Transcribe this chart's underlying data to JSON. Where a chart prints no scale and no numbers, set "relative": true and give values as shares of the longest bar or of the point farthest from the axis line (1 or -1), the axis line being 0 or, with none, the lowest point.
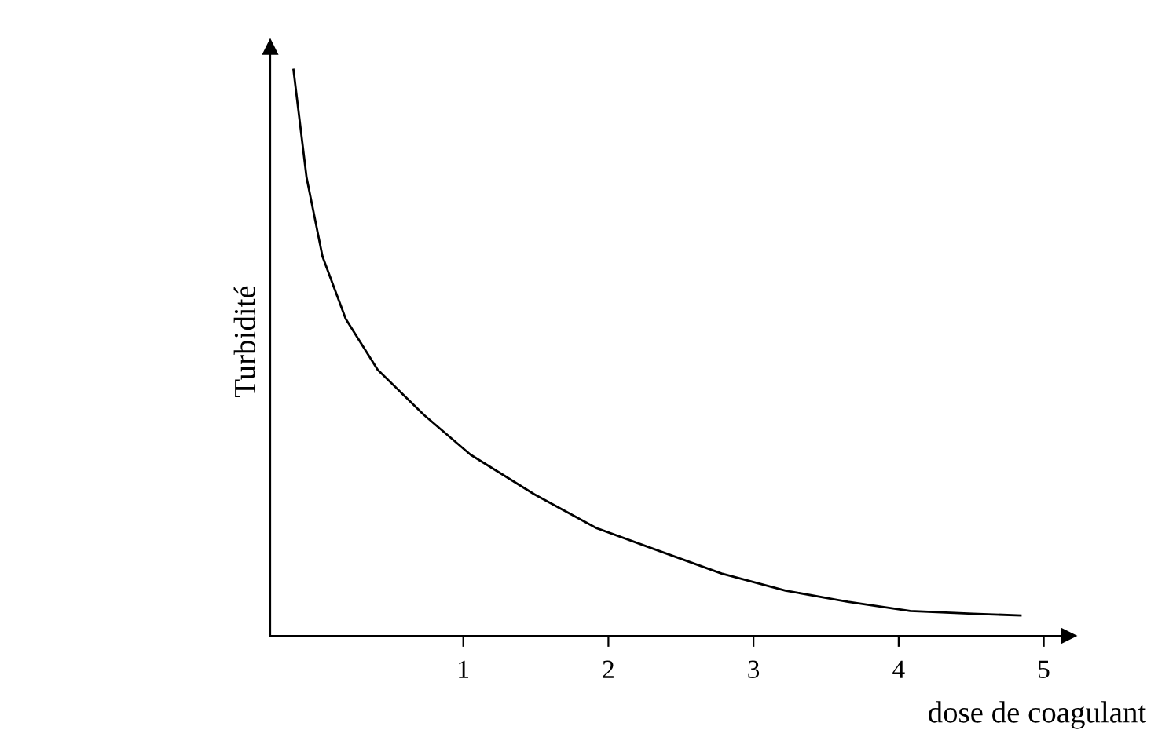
{
  "chart_data": {
    "type": "line",
    "relative": true,
    "xlabel": "dose de coagulant",
    "ylabel": "Turbidité",
    "x": [
      -0.17,
      -0.08,
      0.03,
      0.19,
      0.41,
      0.73,
      1.05,
      1.49,
      1.92,
      2.35,
      2.78,
      3.22,
      3.65,
      4.08,
      4.51,
      4.84
    ],
    "series": [
      {
        "color": "#000000",
        "values": [
          1.0,
          0.81,
          0.67,
          0.56,
          0.47,
          0.39,
          0.32,
          0.25,
          0.19,
          0.15,
          0.11,
          0.08,
          0.06,
          0.044,
          0.039,
          0.036
        ]
      }
    ],
    "xlim": [
      -0.33,
      5.17
    ],
    "xticks": [
      1,
      2,
      3,
      4,
      5
    ],
    "tick_labels": "x",
    "grid": false,
    "legend": false,
    "marker": "none",
    "line_style": "solid"
  }
}
